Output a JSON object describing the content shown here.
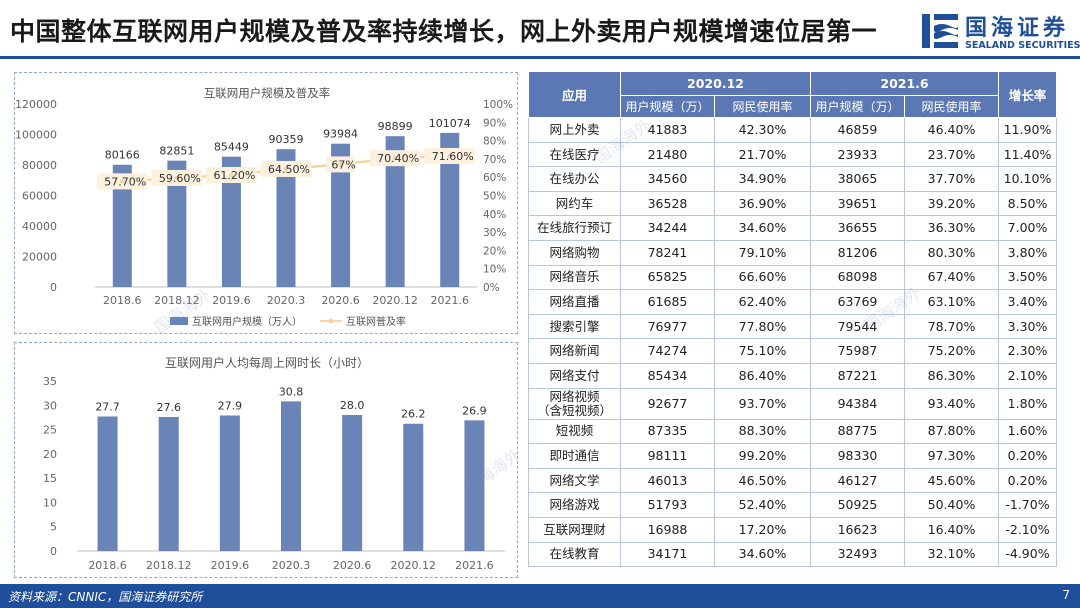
{
  "title": "中国整体互联网用户规模及普及率持续增长，网上外卖用户规模增速位居第一",
  "logo": {
    "cn": "国海证券",
    "en": "SEALAND SECURITIES"
  },
  "watermark": "国海海外",
  "footer": {
    "source": "资料来源：CNNIC，国海证券研究所",
    "page": "7"
  },
  "colors": {
    "brand": "#1f4e9b",
    "bar": "#6b84b8",
    "line": "#f6d5a0",
    "table_header": "#5b78b4"
  },
  "chart_data": [
    {
      "type": "bar+line",
      "title": "互联网用户规模及普及率",
      "categories": [
        "2018.6",
        "2018.12",
        "2019.6",
        "2020.3",
        "2020.6",
        "2020.12",
        "2021.6"
      ],
      "series": [
        {
          "name": "互联网用户规模（万人）",
          "type": "bar",
          "axis": "left",
          "values": [
            80166,
            82851,
            85449,
            90359,
            93984,
            98899,
            101074
          ]
        },
        {
          "name": "互联网普及率",
          "type": "line",
          "axis": "right",
          "values": [
            57.7,
            59.6,
            61.2,
            64.5,
            67,
            70.4,
            71.6
          ],
          "labels": [
            "57.70%",
            "59.60%",
            "61.20%",
            "64.50%",
            "67%",
            "70.40%",
            "71.60%"
          ]
        }
      ],
      "left_ticks": [
        "0",
        "20000",
        "40000",
        "60000",
        "80000",
        "100000",
        "120000"
      ],
      "right_ticks": [
        "0%",
        "10%",
        "20%",
        "30%",
        "40%",
        "50%",
        "60%",
        "70%",
        "80%",
        "90%",
        "100%"
      ],
      "ylim_left": [
        0,
        120000
      ],
      "ylim_right": [
        0,
        100
      ],
      "legend": [
        "互联网用户规模（万人）",
        "互联网普及率"
      ]
    },
    {
      "type": "bar",
      "title": "互联网用户人均每周上网时长（小时）",
      "categories": [
        "2018.6",
        "2018.12",
        "2019.6",
        "2020.3",
        "2020.6",
        "2020.12",
        "2021.6"
      ],
      "values": [
        27.7,
        27.6,
        27.9,
        30.8,
        28.0,
        26.2,
        26.9
      ],
      "labels": [
        "27.7",
        "27.6",
        "27.9",
        "30.8",
        "28.0",
        "26.2",
        "26.9"
      ],
      "ticks": [
        "0",
        "5",
        "10",
        "15",
        "20",
        "25",
        "30",
        "35"
      ],
      "ylim": [
        0,
        35
      ]
    }
  ],
  "table": {
    "col_app": "应用",
    "period1": "2020.12",
    "period2": "2021.6",
    "col_growth": "增长率",
    "sub_users": "用户规模（万）",
    "sub_rate": "网民使用率",
    "rows": [
      {
        "app": "网上外卖",
        "u1": "41883",
        "r1": "42.30%",
        "u2": "46859",
        "r2": "46.40%",
        "g": "11.90%"
      },
      {
        "app": "在线医疗",
        "u1": "21480",
        "r1": "21.70%",
        "u2": "23933",
        "r2": "23.70%",
        "g": "11.40%"
      },
      {
        "app": "在线办公",
        "u1": "34560",
        "r1": "34.90%",
        "u2": "38065",
        "r2": "37.70%",
        "g": "10.10%"
      },
      {
        "app": "网约车",
        "u1": "36528",
        "r1": "36.90%",
        "u2": "39651",
        "r2": "39.20%",
        "g": "8.50%"
      },
      {
        "app": "在线旅行预订",
        "u1": "34244",
        "r1": "34.60%",
        "u2": "36655",
        "r2": "36.30%",
        "g": "7.00%"
      },
      {
        "app": "网络购物",
        "u1": "78241",
        "r1": "79.10%",
        "u2": "81206",
        "r2": "80.30%",
        "g": "3.80%"
      },
      {
        "app": "网络音乐",
        "u1": "65825",
        "r1": "66.60%",
        "u2": "68098",
        "r2": "67.40%",
        "g": "3.50%"
      },
      {
        "app": "网络直播",
        "u1": "61685",
        "r1": "62.40%",
        "u2": "63769",
        "r2": "63.10%",
        "g": "3.40%"
      },
      {
        "app": "搜索引擎",
        "u1": "76977",
        "r1": "77.80%",
        "u2": "79544",
        "r2": "78.70%",
        "g": "3.30%"
      },
      {
        "app": "网络新闻",
        "u1": "74274",
        "r1": "75.10%",
        "u2": "75987",
        "r2": "75.20%",
        "g": "2.30%"
      },
      {
        "app": "网络支付",
        "u1": "85434",
        "r1": "86.40%",
        "u2": "87221",
        "r2": "86.30%",
        "g": "2.10%"
      },
      {
        "app": "网络视频\n（含短视频）",
        "u1": "92677",
        "r1": "93.70%",
        "u2": "94384",
        "r2": "93.40%",
        "g": "1.80%"
      },
      {
        "app": "短视频",
        "u1": "87335",
        "r1": "88.30%",
        "u2": "88775",
        "r2": "87.80%",
        "g": "1.60%"
      },
      {
        "app": "即时通信",
        "u1": "98111",
        "r1": "99.20%",
        "u2": "98330",
        "r2": "97.30%",
        "g": "0.20%"
      },
      {
        "app": "网络文学",
        "u1": "46013",
        "r1": "46.50%",
        "u2": "46127",
        "r2": "45.60%",
        "g": "0.20%"
      },
      {
        "app": "网络游戏",
        "u1": "51793",
        "r1": "52.40%",
        "u2": "50925",
        "r2": "50.40%",
        "g": "-1.70%"
      },
      {
        "app": "互联网理财",
        "u1": "16988",
        "r1": "17.20%",
        "u2": "16623",
        "r2": "16.40%",
        "g": "-2.10%"
      },
      {
        "app": "在线教育",
        "u1": "34171",
        "r1": "34.60%",
        "u2": "32493",
        "r2": "32.10%",
        "g": "-4.90%"
      }
    ]
  }
}
